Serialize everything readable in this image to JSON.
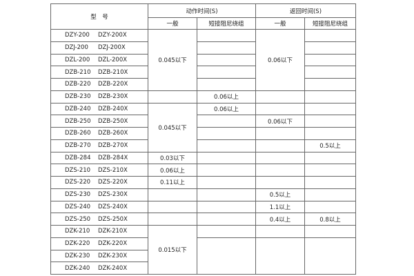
{
  "header": {
    "model": "型　号",
    "action_time": "动作时间(S)",
    "return_time": "返回时间(S)",
    "general": "一般",
    "shorted_winding": "短接阻尼绕组"
  },
  "rows": [
    {
      "model": [
        "DZY-200",
        "DZY-200X"
      ],
      "cells": [
        {
          "text": "0.045以下",
          "rowspan": 5
        },
        {
          "text": ""
        },
        {
          "text": "0.06以下",
          "rowspan": 5
        },
        {
          "text": ""
        }
      ]
    },
    {
      "model": [
        "DZJ-200",
        "DZJ-200X"
      ],
      "cells": [
        null,
        {
          "text": ""
        },
        null,
        {
          "text": ""
        }
      ]
    },
    {
      "model": [
        "DZL-200",
        "DZL-200X"
      ],
      "cells": [
        null,
        {
          "text": ""
        },
        null,
        {
          "text": ""
        }
      ]
    },
    {
      "model": [
        "DZB-210",
        "DZB-210X"
      ],
      "cells": [
        null,
        {
          "text": ""
        },
        null,
        {
          "text": ""
        }
      ]
    },
    {
      "model": [
        "DZB-220",
        "DZB-220X"
      ],
      "cells": [
        null,
        {
          "text": ""
        },
        null,
        {
          "text": ""
        }
      ]
    },
    {
      "model": [
        "DZB-230",
        "DZB-230X"
      ],
      "cells": [
        {
          "text": ""
        },
        {
          "text": "0.06以上"
        },
        {
          "text": ""
        },
        {
          "text": ""
        }
      ]
    },
    {
      "model": [
        "DZB-240",
        "DZB-240X"
      ],
      "cells": [
        {
          "text": "0.045以下",
          "rowspan": 4
        },
        {
          "text": "0.06以上"
        },
        {
          "text": ""
        },
        {
          "text": ""
        }
      ]
    },
    {
      "model": [
        "DZB-250",
        "DZB-250X"
      ],
      "cells": [
        null,
        {
          "text": ""
        },
        {
          "text": "0.06以下"
        },
        {
          "text": ""
        }
      ]
    },
    {
      "model": [
        "DZB-260",
        "DZB-260X"
      ],
      "cells": [
        null,
        {
          "text": ""
        },
        {
          "text": ""
        },
        {
          "text": ""
        }
      ]
    },
    {
      "model": [
        "DZB-270",
        "DZB-270X"
      ],
      "cells": [
        null,
        {
          "text": ""
        },
        {
          "text": ""
        },
        {
          "text": "0.5以上"
        }
      ]
    },
    {
      "model": [
        "DZB-284",
        "DZB-284X"
      ],
      "cells": [
        {
          "text": "0.03以下"
        },
        {
          "text": ""
        },
        {
          "text": ""
        },
        {
          "text": ""
        }
      ]
    },
    {
      "model": [
        "DZS-210",
        "DZS-210X"
      ],
      "cells": [
        {
          "text": "0.06以上"
        },
        {
          "text": ""
        },
        {
          "text": ""
        },
        {
          "text": ""
        }
      ]
    },
    {
      "model": [
        "DZS-220",
        "DZS-220X"
      ],
      "cells": [
        {
          "text": "0.11以上"
        },
        {
          "text": ""
        },
        {
          "text": ""
        },
        {
          "text": ""
        }
      ]
    },
    {
      "model": [
        "DZS-230",
        "DZS-230X"
      ],
      "cells": [
        {
          "text": ""
        },
        {
          "text": ""
        },
        {
          "text": "0.5以上"
        },
        {
          "text": ""
        }
      ]
    },
    {
      "model": [
        "DZS-240",
        "DZS-240X"
      ],
      "cells": [
        {
          "text": ""
        },
        {
          "text": ""
        },
        {
          "text": "1.1以上"
        },
        {
          "text": ""
        }
      ]
    },
    {
      "model": [
        "DZS-250",
        "DZS-250X"
      ],
      "cells": [
        {
          "text": ""
        },
        {
          "text": ""
        },
        {
          "text": "0.4以上"
        },
        {
          "text": "0.8以上"
        }
      ]
    },
    {
      "model": [
        "DZK-210",
        "DZK-210X"
      ],
      "cells": [
        {
          "text": "0.015以下",
          "rowspan": 4
        },
        {
          "text": ""
        },
        {
          "text": ""
        },
        {
          "text": ""
        }
      ]
    },
    {
      "model": [
        "DZK-220",
        "DZK-220X"
      ],
      "cells": [
        null,
        {
          "text": "",
          "rowspan": 3
        },
        {
          "text": "",
          "rowspan": 3
        },
        {
          "text": "",
          "rowspan": 3
        }
      ]
    },
    {
      "model": [
        "DZK-230",
        "DZK-230X"
      ],
      "cells": [
        null,
        null,
        null,
        null
      ]
    },
    {
      "model": [
        "DZK-240",
        "DZK-240X"
      ],
      "cells": [
        null,
        null,
        null,
        null
      ]
    }
  ]
}
